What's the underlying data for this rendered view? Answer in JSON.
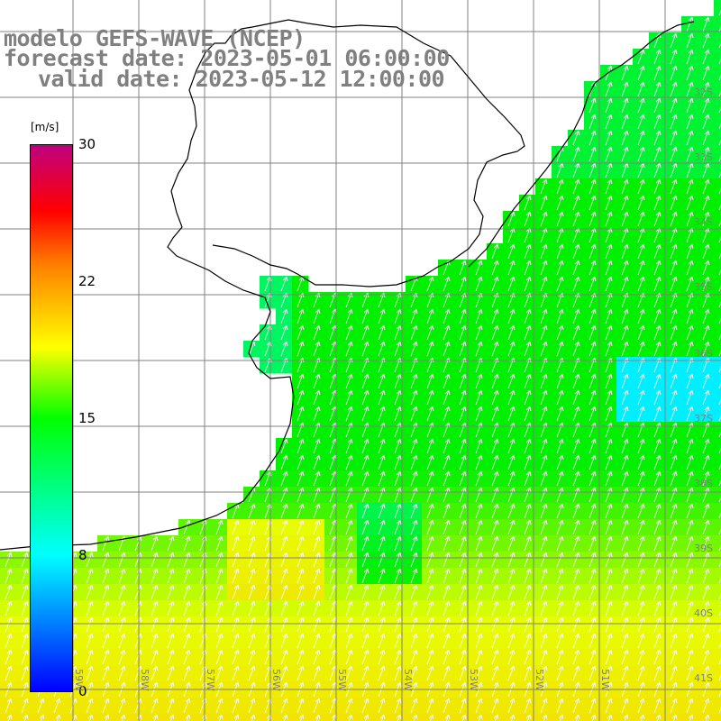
{
  "title": {
    "line1": "modelo GEFS-WAVE (NCEP)",
    "line2": "forecast date: 2023-05-01 06:00:00",
    "line3": "valid date: 2023-05-12 12:00:00"
  },
  "legend": {
    "unit": "[m/s]",
    "ticks": [
      "30",
      "22",
      "15",
      "8",
      "0"
    ]
  },
  "lon_labels": [
    "59W",
    "58W",
    "57W",
    "56W",
    "55W",
    "54W",
    "53W",
    "52W",
    "51W"
  ],
  "lat_labels": [
    "32S",
    "33S",
    "34S",
    "35S",
    "36S",
    "37S",
    "38S",
    "39S",
    "40S",
    "41S"
  ],
  "colors": {
    "land": "#ffffff",
    "grid": "#808080",
    "coast": "#000000",
    "wind_low": "#0000ff",
    "wind_mid": "#00ff00",
    "wind_high": "#ffff00",
    "wind_max": "#c0007f"
  },
  "chart_data": {
    "type": "heatmap",
    "variable": "wind speed",
    "unit": "[m/s]",
    "colorbar_range": [
      0,
      30
    ],
    "lon_range": [
      -60,
      -50.5
    ],
    "lat_range": [
      -41.5,
      -31.8
    ]
  }
}
